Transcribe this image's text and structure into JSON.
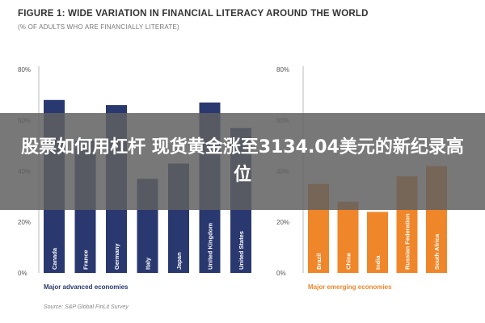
{
  "figure": {
    "title": "FIGURE 1: WIDE VARIATION IN FINANCIAL LITERACY AROUND THE WORLD",
    "subtitle": "(% OF ADULTS WHO ARE FINANCIALLY LITERATE)",
    "source": "Source: S&P Global FinLit Survey"
  },
  "overlay": {
    "headline": "股票如何用杠杆 现货黄金涨至3134.04美元的新纪录高位"
  },
  "chart_data": [
    {
      "type": "bar",
      "title": "Major advanced economies",
      "categories": [
        "Canada",
        "France",
        "Germany",
        "Italy",
        "Japan",
        "United Kingdom",
        "United States"
      ],
      "values": [
        68,
        52,
        66,
        37,
        43,
        67,
        57
      ],
      "yticks": [
        "0%",
        "20%",
        "40%",
        "60%",
        "80%"
      ],
      "ylim": [
        0,
        80
      ],
      "color": "#2a3870"
    },
    {
      "type": "bar",
      "title": "Major emerging economies",
      "categories": [
        "Brazil",
        "China",
        "India",
        "Russian Federation",
        "South Africa"
      ],
      "values": [
        35,
        28,
        24,
        38,
        42
      ],
      "yticks": [
        "0%",
        "20%",
        "40%",
        "60%",
        "80%"
      ],
      "ylim": [
        0,
        80
      ],
      "color": "#f0862a"
    }
  ]
}
